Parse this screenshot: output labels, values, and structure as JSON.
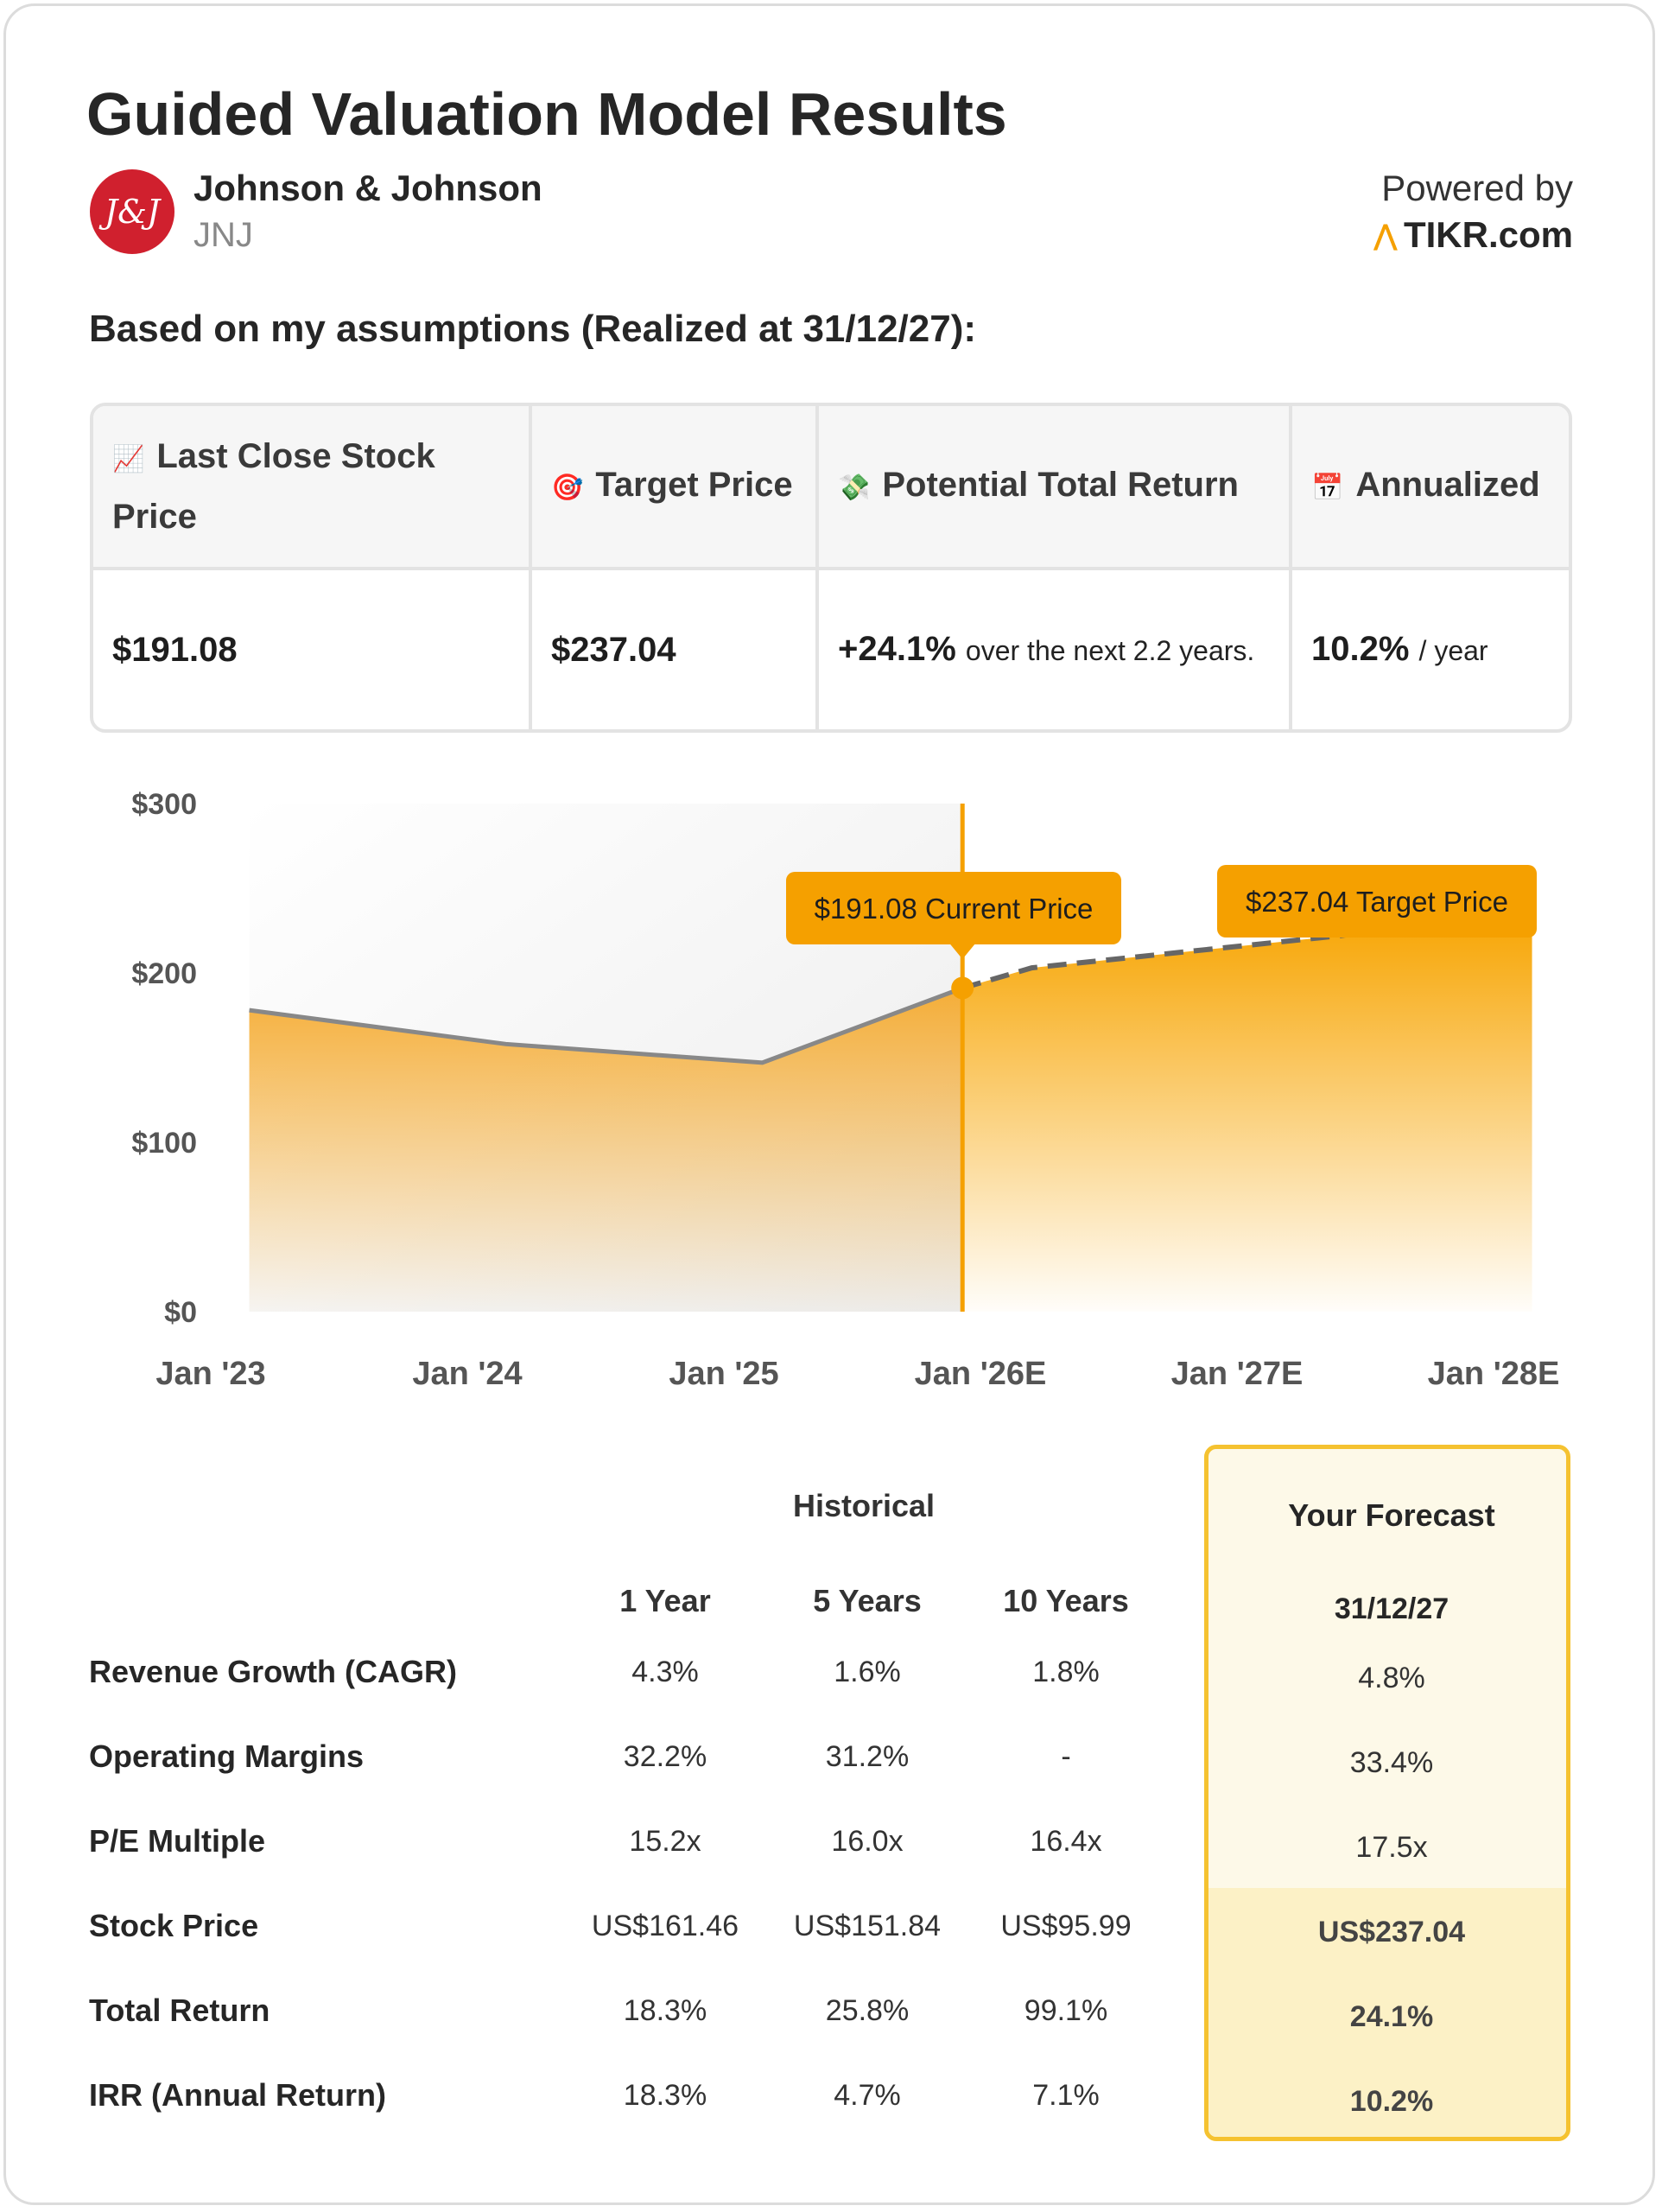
{
  "header": {
    "title": "Guided Valuation Model Results",
    "company": "Johnson & Johnson",
    "ticker": "JNJ",
    "logo_text": "J&J",
    "powered_by": "Powered by",
    "brand": "TIKR.com",
    "assumptions": "Based on my assumptions (Realized at 31/12/27):"
  },
  "summary": {
    "headers": [
      {
        "icon": "📈",
        "label": "Last Close Stock Price"
      },
      {
        "icon": "🎯",
        "label": "Target Price"
      },
      {
        "icon": "💸",
        "label": "Potential Total Return"
      },
      {
        "icon": "📅",
        "label": "Annualized"
      }
    ],
    "last_close": "$191.08",
    "target": "$237.04",
    "total_return": "+24.1%",
    "total_return_suffix": "over the next 2.2 years.",
    "annualized": "10.2%",
    "annualized_suffix": "/ year"
  },
  "chart_data": {
    "type": "area",
    "x_labels": [
      "Jan '23",
      "Jan '24",
      "Jan '25",
      "Jan '26E",
      "Jan '27E",
      "Jan '28E"
    ],
    "x": [
      0,
      1,
      2,
      3,
      4,
      5
    ],
    "ylim": [
      0,
      300
    ],
    "y_ticks": [
      "$0",
      "$100",
      "$200",
      "$300"
    ],
    "y_tick_values": [
      0,
      100,
      200,
      300
    ],
    "historical": [
      {
        "x": 0.15,
        "y": 178
      },
      {
        "x": 1.15,
        "y": 158
      },
      {
        "x": 2.15,
        "y": 147
      },
      {
        "x": 2.93,
        "y": 191.08
      }
    ],
    "forecast": [
      {
        "x": 2.93,
        "y": 191.08
      },
      {
        "x": 3.2,
        "y": 203
      },
      {
        "x": 4.4,
        "y": 222
      },
      {
        "x": 5.15,
        "y": 237.04
      }
    ],
    "current": {
      "x": 2.93,
      "value": 191.08,
      "label": "$191.08 Current Price"
    },
    "target": {
      "x": 5.15,
      "value": 237.04,
      "label": "$237.04 Target Price"
    },
    "colors": {
      "accent": "#f5a000",
      "line": "#888888",
      "area": "#f5a623"
    }
  },
  "table": {
    "historical_label": "Historical",
    "forecast_label": "Your Forecast",
    "columns": [
      "1 Year",
      "5 Years",
      "10 Years"
    ],
    "forecast_date": "31/12/27",
    "rows": [
      {
        "label": "Revenue Growth (CAGR)",
        "values": [
          "4.3%",
          "1.6%",
          "1.8%"
        ],
        "forecast": "4.8%"
      },
      {
        "label": "Operating Margins",
        "values": [
          "32.2%",
          "31.2%",
          "-"
        ],
        "forecast": "33.4%"
      },
      {
        "label": "P/E Multiple",
        "values": [
          "15.2x",
          "16.0x",
          "16.4x"
        ],
        "forecast": "17.5x"
      },
      {
        "label": "Stock Price",
        "values": [
          "US$161.46",
          "US$151.84",
          "US$95.99"
        ],
        "forecast": "US$237.04"
      },
      {
        "label": "Total Return",
        "values": [
          "18.3%",
          "25.8%",
          "99.1%"
        ],
        "forecast": "24.1%"
      },
      {
        "label": "IRR (Annual Return)",
        "values": [
          "18.3%",
          "4.7%",
          "7.1%"
        ],
        "forecast": "10.2%"
      }
    ]
  }
}
